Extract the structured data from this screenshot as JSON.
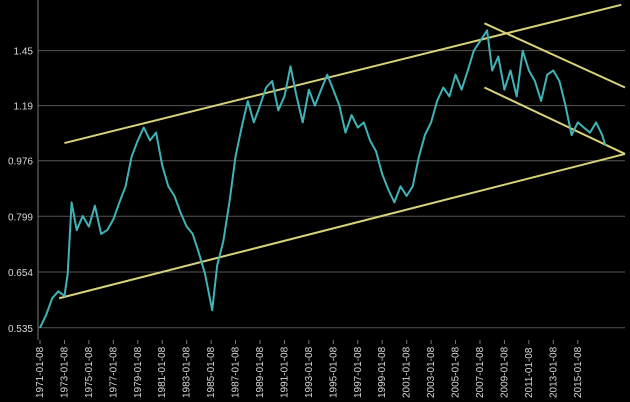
{
  "chart_data": {
    "type": "line",
    "log_y": true,
    "grid": true,
    "xlim": [
      "1971-01-08",
      "2018-11-20"
    ],
    "ylim": [
      0.512,
      1.74
    ],
    "yticks": [
      0.535,
      0.654,
      0.799,
      0.976,
      1.19,
      1.45
    ],
    "xticks": [
      "1971-01-08",
      "1973-01-08",
      "1975-01-08",
      "1977-01-08",
      "1979-01-08",
      "1981-01-08",
      "1983-01-08",
      "1985-01-08",
      "1987-01-08",
      "1989-01-08",
      "1991-01-08",
      "1993-01-08",
      "1995-01-08",
      "1997-01-08",
      "1999-01-08",
      "2001-01-08",
      "2003-01-08",
      "2005-01-08",
      "2007-01-08",
      "2009-01-08",
      "2011-01-08",
      "2013-01-08",
      "2015-01-08"
    ],
    "x": [
      "1971-01-08",
      "1971-07-08",
      "1972-01-08",
      "1972-07-08",
      "1973-01-08",
      "1973-04-15",
      "1973-08-08",
      "1974-01-08",
      "1974-07-08",
      "1975-01-08",
      "1975-07-08",
      "1976-01-08",
      "1976-07-08",
      "1977-01-08",
      "1977-07-08",
      "1978-01-08",
      "1978-07-08",
      "1979-01-08",
      "1979-07-08",
      "1980-01-08",
      "1980-07-08",
      "1981-01-08",
      "1981-07-08",
      "1982-01-08",
      "1982-07-08",
      "1983-01-08",
      "1983-07-08",
      "1984-01-08",
      "1984-07-08",
      "1985-02-08",
      "1985-07-08",
      "1986-01-08",
      "1986-07-08",
      "1987-01-08",
      "1987-07-08",
      "1988-01-08",
      "1988-07-08",
      "1989-01-08",
      "1989-07-08",
      "1990-01-08",
      "1990-07-08",
      "1991-01-08",
      "1991-07-08",
      "1992-01-08",
      "1992-07-08",
      "1993-01-08",
      "1993-07-08",
      "1994-01-08",
      "1994-07-08",
      "1995-01-08",
      "1995-07-08",
      "1996-01-08",
      "1996-07-08",
      "1997-01-08",
      "1997-07-08",
      "1998-01-08",
      "1998-07-08",
      "1999-01-08",
      "1999-07-08",
      "2000-01-08",
      "2000-07-08",
      "2001-01-08",
      "2001-07-08",
      "2002-01-08",
      "2002-07-08",
      "2003-01-08",
      "2003-07-08",
      "2004-01-08",
      "2004-07-08",
      "2005-01-08",
      "2005-07-08",
      "2006-01-08",
      "2006-07-08",
      "2007-01-08",
      "2007-08-08",
      "2008-01-08",
      "2008-07-08",
      "2009-01-08",
      "2009-07-08",
      "2010-01-08",
      "2010-07-08",
      "2011-01-08",
      "2011-07-08",
      "2012-01-08",
      "2012-07-08",
      "2013-01-08",
      "2013-07-08",
      "2014-01-08",
      "2014-07-08",
      "2015-01-08",
      "2015-07-08",
      "2016-01-08",
      "2016-07-08",
      "2017-01-08",
      "2017-04-15"
    ],
    "series": [
      {
        "color": "#3fb3b8",
        "values": [
          0.535,
          0.56,
          0.595,
          0.61,
          0.6,
          0.65,
          0.84,
          0.76,
          0.8,
          0.77,
          0.83,
          0.75,
          0.76,
          0.79,
          0.84,
          0.89,
          0.99,
          1.05,
          1.1,
          1.05,
          1.08,
          0.96,
          0.89,
          0.86,
          0.81,
          0.77,
          0.75,
          0.7,
          0.65,
          0.57,
          0.67,
          0.73,
          0.84,
          0.99,
          1.1,
          1.21,
          1.12,
          1.19,
          1.27,
          1.3,
          1.17,
          1.23,
          1.37,
          1.23,
          1.12,
          1.26,
          1.19,
          1.26,
          1.33,
          1.26,
          1.19,
          1.08,
          1.15,
          1.1,
          1.12,
          1.05,
          1.01,
          0.93,
          0.88,
          0.84,
          0.89,
          0.86,
          0.89,
          0.99,
          1.07,
          1.12,
          1.21,
          1.27,
          1.23,
          1.33,
          1.26,
          1.35,
          1.45,
          1.5,
          1.56,
          1.35,
          1.42,
          1.26,
          1.35,
          1.23,
          1.45,
          1.35,
          1.3,
          1.21,
          1.33,
          1.35,
          1.3,
          1.19,
          1.07,
          1.12,
          1.1,
          1.08,
          1.12,
          1.07,
          1.03
        ]
      }
    ],
    "trendlines": [
      {
        "color": "#d8d27a",
        "x": [
          "1973-01-08",
          "2018-08-01"
        ],
        "y": [
          1.04,
          1.71
        ]
      },
      {
        "color": "#d8d27a",
        "x": [
          "1972-08-01",
          "2018-11-20"
        ],
        "y": [
          0.595,
          1.0
        ]
      },
      {
        "color": "#d8d27a",
        "x": [
          "2007-05-20",
          "2018-11-20"
        ],
        "y": [
          1.6,
          1.27
        ]
      },
      {
        "color": "#d8d27a",
        "x": [
          "2007-05-20",
          "2018-11-20"
        ],
        "y": [
          1.27,
          1.0
        ]
      }
    ]
  }
}
